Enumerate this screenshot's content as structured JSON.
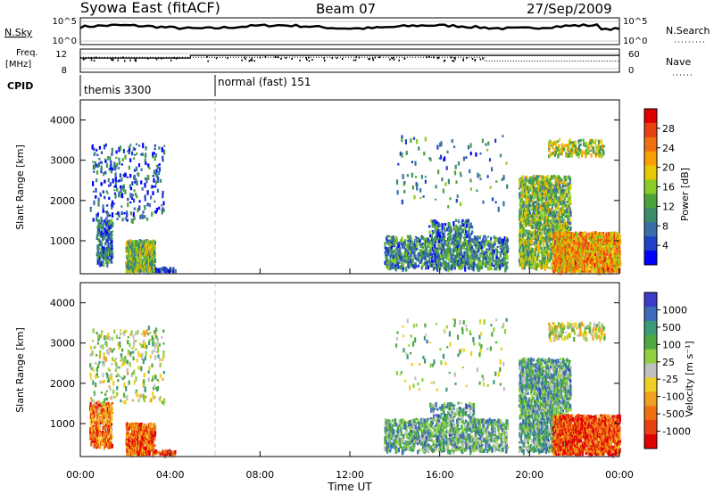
{
  "header": {
    "station": "Syowa East (fitACF)",
    "beam": "Beam 07",
    "date": "27/Sep/2009"
  },
  "top_panels": {
    "nsky_label": "N.Sky",
    "nsearch_label": "N.Search",
    "freq_label_line1": "Freq.",
    "freq_label_line2": "[MHz]",
    "nave_label": "Nave",
    "cpid_label": "CPID",
    "nsky_ticks": [
      "10^5",
      "10^0"
    ],
    "nsearch_ticks": [
      "10^5",
      "10^0"
    ],
    "freq_ticks": [
      "12",
      "8"
    ],
    "nave_ticks": [
      "60",
      "0"
    ],
    "freq_levels_mhz": [
      {
        "from_h": 0,
        "to_h": 4.9,
        "mhz": 10.8
      },
      {
        "from_h": 4.9,
        "to_h": 24,
        "mhz": 11.5
      }
    ],
    "nave_levels": [
      {
        "from_h": 0,
        "to_h": 18,
        "value": 45
      },
      {
        "from_h": 18,
        "to_h": 24,
        "value": 30
      }
    ],
    "cpid": [
      {
        "name": "themis 3300",
        "from_h": 0,
        "to_h": 6
      },
      {
        "name": "normal (fast) 151",
        "from_h": 6,
        "to_h": 24
      }
    ]
  },
  "colors": {
    "power_scale": [
      "#0000ff",
      "#2040c8",
      "#3a6ea8",
      "#3a8c6a",
      "#4aa43a",
      "#8ccc28",
      "#e8c800",
      "#f8a000",
      "#f07010",
      "#e84010",
      "#e00000"
    ],
    "velocity_scale": [
      "#3c3cc8",
      "#3e6ab8",
      "#3c9a78",
      "#4caa40",
      "#90d040",
      "#c0c0c0",
      "#f0d020",
      "#f0a020",
      "#f07010",
      "#e84010",
      "#e00000"
    ]
  },
  "chart_data": [
    {
      "type": "heatmap",
      "ylabel": "Slant Range [km]",
      "xlabel": "",
      "ylim": [
        180,
        4500
      ],
      "xlim_hours": [
        0,
        24
      ],
      "y_ticks": [
        "1000",
        "2000",
        "3000",
        "4000"
      ],
      "y_tick_values": [
        1000,
        2000,
        3000,
        4000
      ],
      "colorbar": {
        "label": "Power [dB]",
        "ticks": [
          "4",
          "8",
          "12",
          "16",
          "20",
          "24",
          "28"
        ],
        "range": [
          0,
          30
        ]
      },
      "x": [
        0,
        24
      ],
      "series": [
        {
          "regions": [
            {
              "t0": 0.7,
              "t1": 1.4,
              "r0": 400,
              "r1": 1500,
              "density": 0.55,
              "level": 0.25
            },
            {
              "t0": 0.4,
              "t1": 3.7,
              "r0": 1500,
              "r1": 3400,
              "density": 0.08,
              "level": 0.2
            },
            {
              "t0": 2.0,
              "t1": 3.3,
              "r0": 220,
              "r1": 1000,
              "density": 0.7,
              "level": 0.45
            },
            {
              "t0": 3.3,
              "t1": 4.2,
              "r0": 220,
              "r1": 320,
              "density": 0.5,
              "level": 0.1
            },
            {
              "t0": 13.5,
              "t1": 19.0,
              "r0": 300,
              "r1": 1100,
              "density": 0.4,
              "level": 0.3
            },
            {
              "t0": 15.5,
              "t1": 17.5,
              "r0": 1100,
              "r1": 1500,
              "density": 0.25,
              "level": 0.25
            },
            {
              "t0": 19.5,
              "t1": 21.8,
              "r0": 300,
              "r1": 2600,
              "density": 0.45,
              "level": 0.45
            },
            {
              "t0": 21.0,
              "t1": 24.0,
              "r0": 220,
              "r1": 1200,
              "density": 0.65,
              "level": 0.7
            },
            {
              "t0": 20.8,
              "t1": 23.3,
              "r0": 3100,
              "r1": 3500,
              "density": 0.3,
              "level": 0.5
            },
            {
              "t0": 14.0,
              "t1": 19.0,
              "r0": 1800,
              "r1": 3600,
              "density": 0.02,
              "level": 0.3
            }
          ]
        }
      ]
    },
    {
      "type": "heatmap",
      "ylabel": "Slant Range [km]",
      "xlabel": "Time UT",
      "ylim": [
        180,
        4500
      ],
      "xlim_hours": [
        0,
        24
      ],
      "y_ticks": [
        "1000",
        "2000",
        "3000",
        "4000"
      ],
      "y_tick_values": [
        1000,
        2000,
        3000,
        4000
      ],
      "x_ticks": [
        "00:00",
        "04:00",
        "08:00",
        "12:00",
        "16:00",
        "20:00",
        "00:00"
      ],
      "x_tick_hours": [
        0,
        4,
        8,
        12,
        16,
        20,
        24
      ],
      "colorbar": {
        "label": "Velocity [m s⁻¹]",
        "ticks": [
          "1000",
          "500",
          "100",
          "25",
          "-25",
          "-100",
          "-500",
          "-1000"
        ]
      },
      "x": [
        0,
        24
      ],
      "series": [
        {
          "regions": [
            {
              "t0": 0.4,
              "t1": 1.4,
              "r0": 400,
              "r1": 1500,
              "density": 0.5,
              "level": 0.75
            },
            {
              "t0": 0.4,
              "t1": 3.7,
              "r0": 1500,
              "r1": 3400,
              "density": 0.08,
              "level": 0.45
            },
            {
              "t0": 2.0,
              "t1": 3.3,
              "r0": 220,
              "r1": 1000,
              "density": 0.7,
              "level": 0.8
            },
            {
              "t0": 3.3,
              "t1": 4.2,
              "r0": 220,
              "r1": 320,
              "density": 0.5,
              "level": 0.85
            },
            {
              "t0": 13.5,
              "t1": 19.0,
              "r0": 300,
              "r1": 1100,
              "density": 0.4,
              "level": 0.3
            },
            {
              "t0": 15.5,
              "t1": 17.5,
              "r0": 1100,
              "r1": 1500,
              "density": 0.25,
              "level": 0.3
            },
            {
              "t0": 19.5,
              "t1": 21.8,
              "r0": 300,
              "r1": 2600,
              "density": 0.45,
              "level": 0.3
            },
            {
              "t0": 21.0,
              "t1": 24.0,
              "r0": 220,
              "r1": 1200,
              "density": 0.65,
              "level": 0.85
            },
            {
              "t0": 20.8,
              "t1": 23.3,
              "r0": 3100,
              "r1": 3500,
              "density": 0.3,
              "level": 0.5
            },
            {
              "t0": 14.0,
              "t1": 19.0,
              "r0": 1800,
              "r1": 3600,
              "density": 0.02,
              "level": 0.4
            }
          ]
        }
      ]
    }
  ]
}
